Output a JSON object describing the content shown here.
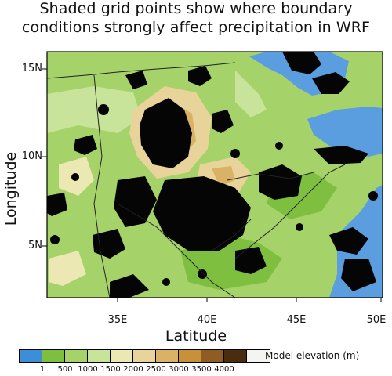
{
  "title_line1": "Shaded grid points show where boundary",
  "title_line2": "conditions strongly affect precipitation in WRF",
  "x_axis_label": "Latitude",
  "y_axis_label": "Longitude",
  "lon_ticks": [
    "35E",
    "40E",
    "45E",
    "50E"
  ],
  "lat_ticks": [
    "15N",
    "10N",
    "5N"
  ],
  "colorbar": {
    "title": "Model elevation (m)",
    "labels": [
      "1",
      "500",
      "1000",
      "1500",
      "2000",
      "2500",
      "3000",
      "3500",
      "4000"
    ],
    "colors": [
      "#3a8fd8",
      "#7fbf3f",
      "#a6d26a",
      "#c8e39a",
      "#ece8b4",
      "#e8d49a",
      "#d9b266",
      "#c69138",
      "#8f5c24",
      "#4a2c10",
      "#f4f4f0"
    ]
  }
}
